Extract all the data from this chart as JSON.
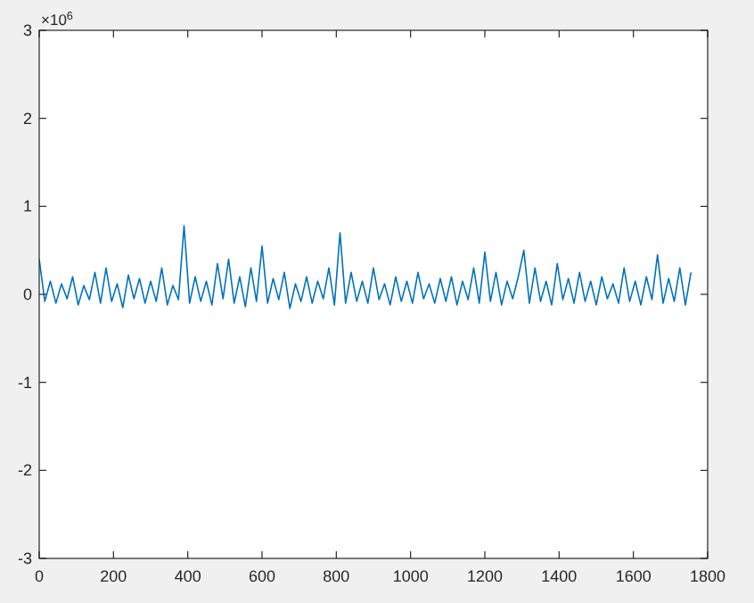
{
  "chart_data": {
    "type": "line",
    "annotations": [
      "×10$^{6}$"
    ],
    "x": [
      0,
      15,
      30,
      45,
      60,
      75,
      90,
      105,
      120,
      135,
      150,
      165,
      180,
      195,
      210,
      225,
      240,
      255,
      270,
      285,
      300,
      315,
      330,
      345,
      360,
      375,
      390,
      405,
      420,
      435,
      450,
      465,
      480,
      495,
      510,
      525,
      540,
      555,
      570,
      585,
      600,
      615,
      630,
      645,
      660,
      675,
      690,
      705,
      720,
      735,
      750,
      765,
      780,
      795,
      810,
      825,
      840,
      855,
      870,
      885,
      900,
      915,
      930,
      945,
      960,
      975,
      990,
      1005,
      1020,
      1035,
      1050,
      1065,
      1080,
      1095,
      1110,
      1125,
      1140,
      1155,
      1170,
      1185,
      1200,
      1215,
      1230,
      1245,
      1260,
      1275,
      1290,
      1305,
      1320,
      1335,
      1350,
      1365,
      1380,
      1395,
      1410,
      1425,
      1440,
      1455,
      1470,
      1485,
      1500,
      1515,
      1530,
      1545,
      1560,
      1575,
      1590,
      1605,
      1620,
      1635,
      1650,
      1665,
      1680,
      1695,
      1710,
      1725,
      1740,
      1755
    ],
    "series": [
      {
        "color": "#0072bd",
        "values": [
          0.4,
          -0.08,
          0.15,
          -0.1,
          0.12,
          -0.05,
          0.2,
          -0.12,
          0.1,
          -0.06,
          0.25,
          -0.1,
          0.3,
          -0.08,
          0.12,
          -0.15,
          0.22,
          -0.05,
          0.18,
          -0.1,
          0.15,
          -0.08,
          0.3,
          -0.12,
          0.1,
          -0.06,
          0.78,
          -0.1,
          0.2,
          -0.08,
          0.15,
          -0.12,
          0.35,
          -0.05,
          0.4,
          -0.1,
          0.2,
          -0.14,
          0.3,
          -0.08,
          0.55,
          -0.1,
          0.18,
          -0.06,
          0.25,
          -0.16,
          0.12,
          -0.08,
          0.2,
          -0.1,
          0.15,
          -0.05,
          0.3,
          -0.12,
          0.7,
          -0.1,
          0.25,
          -0.08,
          0.15,
          -0.1,
          0.3,
          -0.06,
          0.12,
          -0.12,
          0.2,
          -0.08,
          0.15,
          -0.1,
          0.25,
          -0.05,
          0.12,
          -0.1,
          0.18,
          -0.08,
          0.2,
          -0.12,
          0.15,
          -0.06,
          0.3,
          -0.1,
          0.48,
          -0.08,
          0.25,
          -0.12,
          0.15,
          -0.05,
          0.2,
          0.5,
          -0.1,
          0.3,
          -0.08,
          0.15,
          -0.12,
          0.35,
          -0.06,
          0.18,
          -0.1,
          0.25,
          -0.08,
          0.15,
          -0.12,
          0.2,
          -0.05,
          0.12,
          -0.1,
          0.3,
          -0.08,
          0.15,
          -0.12,
          0.2,
          -0.06,
          0.45,
          -0.1,
          0.18,
          -0.08,
          0.3,
          -0.12,
          0.25
        ]
      }
    ],
    "xlim": [
      0,
      1800
    ],
    "xticks": [
      0,
      200,
      400,
      600,
      800,
      1000,
      1200,
      1400,
      1600,
      1800
    ],
    "ylim": [
      -3,
      3
    ],
    "yticks": [
      -3,
      -2,
      -1,
      0,
      1,
      2,
      3
    ],
    "line_style": "solid",
    "marker": "none"
  }
}
